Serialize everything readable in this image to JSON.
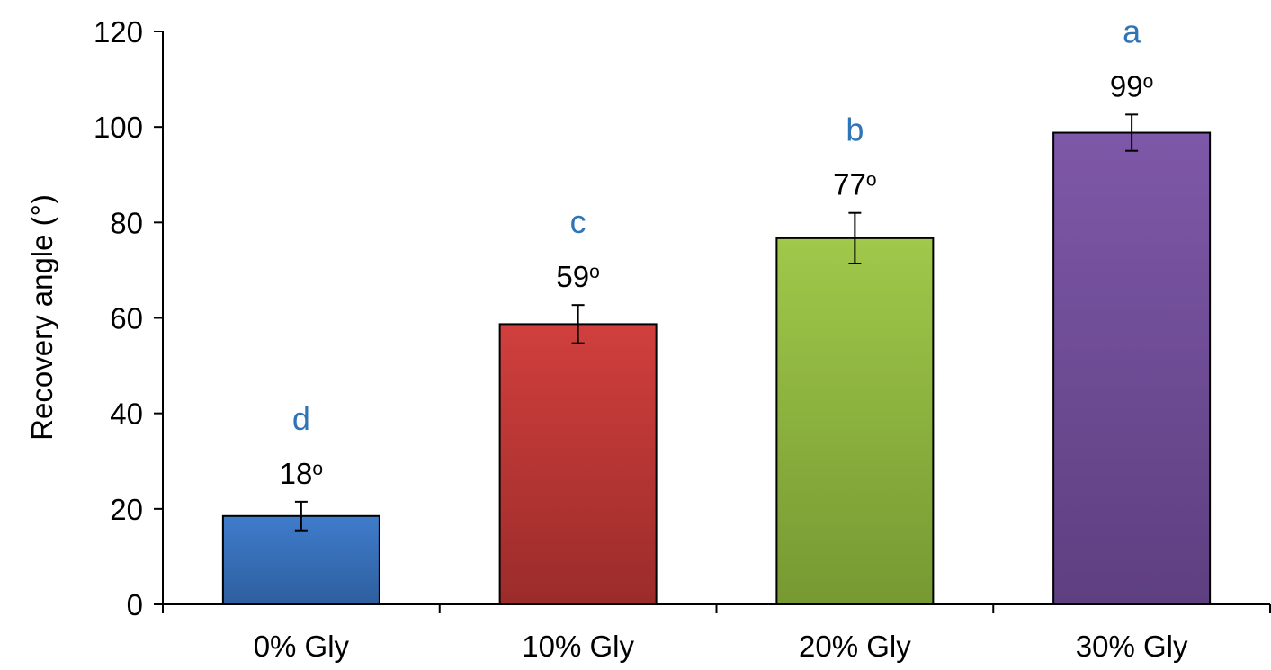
{
  "chart_data": {
    "type": "bar",
    "categories": [
      "0% Gly",
      "10% Gly",
      "20% Gly",
      "30% Gly"
    ],
    "values": [
      18.5,
      58.7,
      76.7,
      98.8
    ],
    "error": [
      3.0,
      4.0,
      5.3,
      3.8
    ],
    "value_labels": [
      "18",
      "59",
      "77",
      "99"
    ],
    "value_label_suffix": "o",
    "significance_letters": [
      "d",
      "c",
      "b",
      "a"
    ],
    "significance_color": "#2E75B6",
    "bar_colors": [
      [
        "#3F7CCB",
        "#2E5F9F"
      ],
      [
        "#D03F3D",
        "#9B2C2A"
      ],
      [
        "#A0C84A",
        "#769932"
      ],
      [
        "#7E58A8",
        "#5E3F80"
      ]
    ],
    "title": "",
    "xlabel": "",
    "ylabel": "Recovery angle (°)",
    "ylim": [
      0,
      120
    ],
    "yticks": [
      "0",
      "20",
      "40",
      "60",
      "80",
      "100",
      "120"
    ],
    "grid": false,
    "legend": "none"
  }
}
